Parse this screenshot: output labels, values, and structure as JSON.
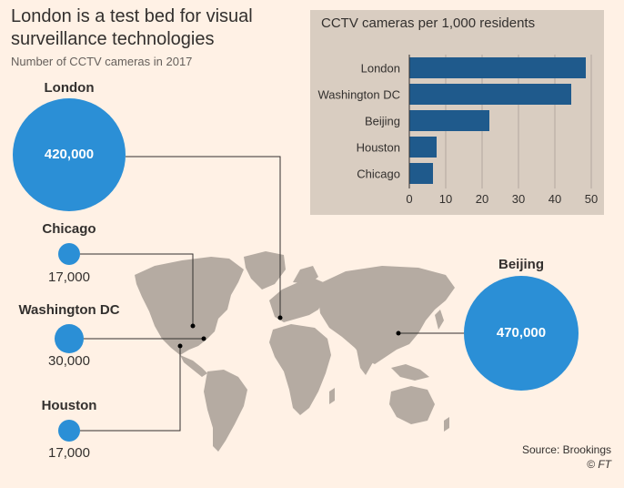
{
  "title": "London is a test bed for visual surveillance technologies",
  "subtitle": "Number of CCTV cameras in 2017",
  "cities": [
    {
      "name": "London",
      "value_label": "420,000",
      "cameras": 420000
    },
    {
      "name": "Chicago",
      "value_label": "17,000",
      "cameras": 17000
    },
    {
      "name": "Washington DC",
      "value_label": "30,000",
      "cameras": 30000
    },
    {
      "name": "Houston",
      "value_label": "17,000",
      "cameras": 17000
    },
    {
      "name": "Beijing",
      "value_label": "470,000",
      "cameras": 470000
    }
  ],
  "chart_data": {
    "type": "bar",
    "title": "CCTV cameras per 1,000 residents",
    "orientation": "horizontal",
    "categories": [
      "London",
      "Washington DC",
      "Beijing",
      "Houston",
      "Chicago"
    ],
    "values": [
      48.5,
      44.5,
      22,
      7.5,
      6.5
    ],
    "xlim": [
      0,
      50
    ],
    "xticks": [
      "0",
      "10",
      "20",
      "30",
      "40",
      "50"
    ],
    "grid": true,
    "colors": {
      "bar": "#1f5a8c",
      "bubble": "#2b8fd6",
      "map": "#b5aba2",
      "background": "#fff1e5",
      "inset": "#d9cdc1"
    }
  },
  "source": {
    "text": "Source: Brookings",
    "credit": "© FT"
  }
}
